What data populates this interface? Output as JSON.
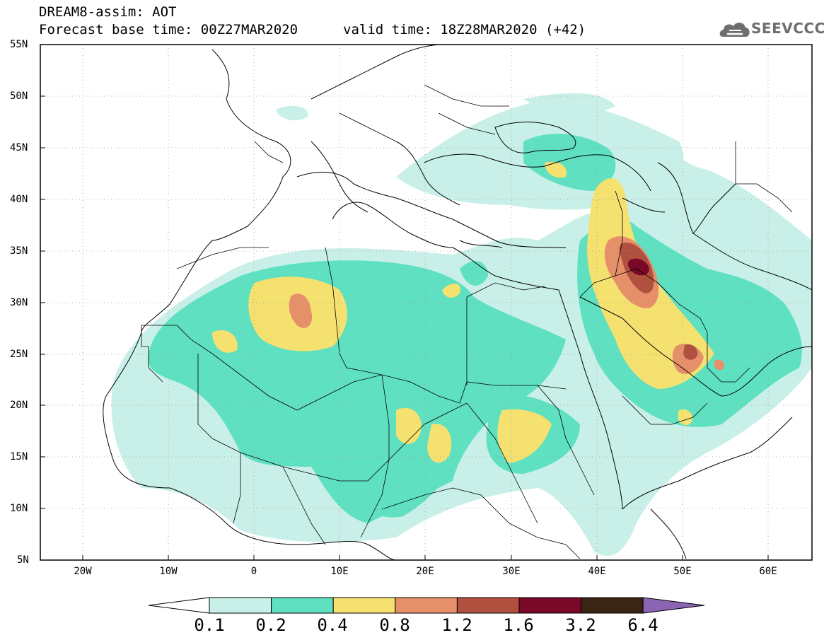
{
  "header": {
    "line1": "DREAM8-assim: AOT",
    "base_time": "Forecast base time: 00Z27MAR2020",
    "valid_time": "valid time: 18Z28MAR2020 (+42)",
    "logo_text": "SEEVCCC",
    "logo_icon": "cloud-icon"
  },
  "axes": {
    "lat_labels": [
      "55N",
      "50N",
      "45N",
      "40N",
      "35N",
      "30N",
      "25N",
      "20N",
      "15N",
      "10N",
      "5N"
    ],
    "lon_labels": [
      "20W",
      "10W",
      "0",
      "10E",
      "20E",
      "30E",
      "40E",
      "50E",
      "60E"
    ]
  },
  "legend": {
    "labels": [
      "0.1",
      "0.2",
      "0.4",
      "0.8",
      "1.2",
      "1.6",
      "3.2",
      "6.4"
    ],
    "colors": [
      "#c8f0e8",
      "#5fe0c0",
      "#f5e170",
      "#e6906a",
      "#b0503e",
      "#7a0828",
      "#3a2414",
      "#8c64b4"
    ]
  },
  "chart_data": {
    "type": "heatmap",
    "variable": "AOT",
    "lon_range": [
      -25,
      65
    ],
    "lat_range": [
      5,
      55
    ],
    "levels": [
      0.1,
      0.2,
      0.4,
      0.8,
      1.2,
      1.6,
      3.2,
      6.4
    ]
  }
}
